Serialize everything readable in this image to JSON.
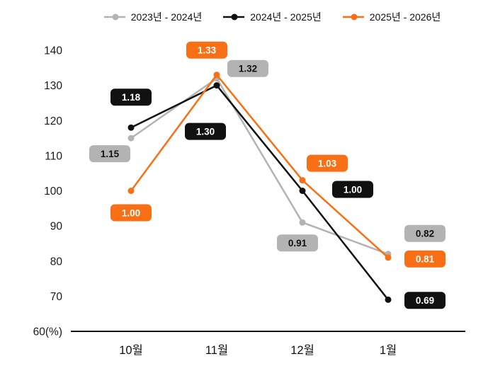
{
  "chart_data": {
    "type": "line",
    "title": "",
    "xlabel": "",
    "ylabel": "",
    "categories": [
      "10월",
      "11월",
      "12월",
      "1월"
    ],
    "series": [
      {
        "name": "2023년 - 2024년",
        "color": "#b3b3b3",
        "values": [
          115,
          132,
          91,
          82
        ],
        "labels": [
          "1.15",
          "1.32",
          "0.91",
          "0.82"
        ],
        "label_text_color": "#111111",
        "label_offsets": [
          [
            -30,
            22
          ],
          [
            44,
            -14
          ],
          [
            -7,
            29
          ],
          [
            52,
            -29
          ]
        ]
      },
      {
        "name": "2024년 - 2025년",
        "color": "#111111",
        "values": [
          118,
          130,
          100,
          69
        ],
        "labels": [
          "1.18",
          "1.30",
          "1.00",
          "0.69"
        ],
        "label_text_color": "#ffffff",
        "label_offsets": [
          [
            0,
            -43
          ],
          [
            -16,
            65
          ],
          [
            71,
            -2
          ],
          [
            52,
            1
          ]
        ]
      },
      {
        "name": "2025년 - 2026년",
        "color": "#f86f15",
        "values": [
          100,
          133,
          103,
          81
        ],
        "labels": [
          "1.00",
          "1.33",
          "1.03",
          "0.81"
        ],
        "label_text_color": "#ffffff",
        "label_offsets": [
          [
            0,
            31
          ],
          [
            -14,
            -35
          ],
          [
            35,
            -24
          ],
          [
            52,
            2
          ]
        ]
      }
    ],
    "ylim": [
      60,
      140
    ],
    "yticks": [
      {
        "label": "140",
        "value": 140
      },
      {
        "label": "130",
        "value": 130
      },
      {
        "label": "120",
        "value": 120
      },
      {
        "label": "110",
        "value": 110
      },
      {
        "label": "100",
        "value": 100
      },
      {
        "label": "90",
        "value": 90
      },
      {
        "label": "80",
        "value": 80
      },
      {
        "label": "70",
        "value": 70
      },
      {
        "label": "60(%)",
        "value": 60
      }
    ],
    "legend_position": "top",
    "grid": false,
    "axis_color": "#111111",
    "background_color": "#ffffff"
  }
}
